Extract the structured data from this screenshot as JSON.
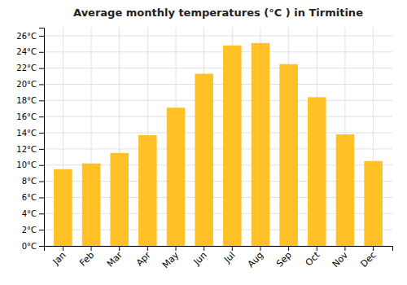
{
  "chart_data": {
    "type": "bar",
    "title": "Average monthly temperatures (°C ) in Tirmitine",
    "categories": [
      "Jan",
      "Feb",
      "Mar",
      "Apr",
      "May",
      "Jun",
      "Jul",
      "Aug",
      "Sep",
      "Oct",
      "Nov",
      "Dec"
    ],
    "values": [
      9.5,
      10.2,
      11.5,
      13.7,
      17.1,
      21.3,
      24.8,
      25.1,
      22.5,
      18.4,
      13.8,
      10.5
    ],
    "color": "#FFC125",
    "ylim": [
      0,
      27
    ],
    "yticks": [
      {
        "value": 0,
        "label": "0°C"
      },
      {
        "value": 2,
        "label": "2°C"
      },
      {
        "value": 4,
        "label": "4°C"
      },
      {
        "value": 6,
        "label": "6°C"
      },
      {
        "value": 8,
        "label": "8°C"
      },
      {
        "value": 10,
        "label": "10°C"
      },
      {
        "value": 12,
        "label": "12°C"
      },
      {
        "value": 14,
        "label": "14°C"
      },
      {
        "value": 16,
        "label": "16°C"
      },
      {
        "value": 18,
        "label": "18°C"
      },
      {
        "value": 20,
        "label": "20°C"
      },
      {
        "value": 22,
        "label": "22°C"
      },
      {
        "value": 24,
        "label": "24°C"
      },
      {
        "value": 26,
        "label": "26°C"
      }
    ],
    "grid": true
  }
}
